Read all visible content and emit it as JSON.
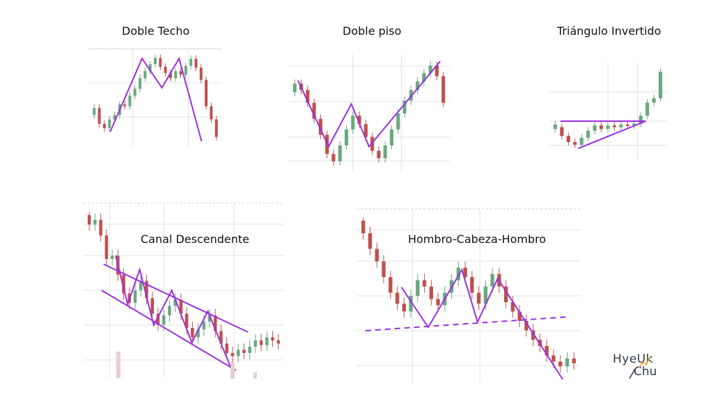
{
  "colors": {
    "up": "#6aa882",
    "down": "#c0504d",
    "pattern": "#9a2fe0",
    "grid": "#e2e2e2",
    "logo_accent": "#f0a020"
  },
  "chart_data": [
    {
      "type": "candlestick",
      "title": "Doble Techo",
      "pattern_lines": "zigzag with two peaks",
      "candles": [
        {
          "o": 0.3,
          "c": 0.38
        },
        {
          "o": 0.38,
          "c": 0.2
        },
        {
          "o": 0.2,
          "c": 0.15
        },
        {
          "o": 0.15,
          "c": 0.25
        },
        {
          "o": 0.25,
          "c": 0.3
        },
        {
          "o": 0.3,
          "c": 0.42
        },
        {
          "o": 0.42,
          "c": 0.4
        },
        {
          "o": 0.4,
          "c": 0.52
        },
        {
          "o": 0.52,
          "c": 0.6
        },
        {
          "o": 0.6,
          "c": 0.72
        },
        {
          "o": 0.72,
          "c": 0.8
        },
        {
          "o": 0.8,
          "c": 0.88
        },
        {
          "o": 0.88,
          "c": 0.95
        },
        {
          "o": 0.95,
          "c": 0.85
        },
        {
          "o": 0.85,
          "c": 0.78
        },
        {
          "o": 0.78,
          "c": 0.72
        },
        {
          "o": 0.72,
          "c": 0.8
        },
        {
          "o": 0.8,
          "c": 0.76
        },
        {
          "o": 0.76,
          "c": 0.86
        },
        {
          "o": 0.86,
          "c": 0.94
        },
        {
          "o": 0.94,
          "c": 0.84
        },
        {
          "o": 0.84,
          "c": 0.7
        },
        {
          "o": 0.7,
          "c": 0.4
        },
        {
          "o": 0.4,
          "c": 0.25
        },
        {
          "o": 0.25,
          "c": 0.05
        }
      ]
    },
    {
      "type": "candlestick",
      "title": "Doble piso",
      "pattern_lines": "zigzag with two troughs",
      "candles": [
        {
          "o": 0.7,
          "c": 0.78
        },
        {
          "o": 0.78,
          "c": 0.72
        },
        {
          "o": 0.72,
          "c": 0.6
        },
        {
          "o": 0.6,
          "c": 0.45
        },
        {
          "o": 0.45,
          "c": 0.3
        },
        {
          "o": 0.3,
          "c": 0.12
        },
        {
          "o": 0.12,
          "c": 0.05
        },
        {
          "o": 0.05,
          "c": 0.2
        },
        {
          "o": 0.2,
          "c": 0.35
        },
        {
          "o": 0.35,
          "c": 0.48
        },
        {
          "o": 0.48,
          "c": 0.4
        },
        {
          "o": 0.4,
          "c": 0.28
        },
        {
          "o": 0.28,
          "c": 0.15
        },
        {
          "o": 0.15,
          "c": 0.08
        },
        {
          "o": 0.08,
          "c": 0.2
        },
        {
          "o": 0.2,
          "c": 0.35
        },
        {
          "o": 0.35,
          "c": 0.5
        },
        {
          "o": 0.5,
          "c": 0.62
        },
        {
          "o": 0.62,
          "c": 0.72
        },
        {
          "o": 0.72,
          "c": 0.8
        },
        {
          "o": 0.8,
          "c": 0.88
        },
        {
          "o": 0.88,
          "c": 0.95
        },
        {
          "o": 0.95,
          "c": 0.85
        },
        {
          "o": 0.85,
          "c": 0.6
        }
      ]
    },
    {
      "type": "candlestick",
      "title": "Triángulo Invertido",
      "pattern_lines": "flat top and rising bottom converging",
      "candles": [
        {
          "o": 0.3,
          "c": 0.35
        },
        {
          "o": 0.32,
          "c": 0.22
        },
        {
          "o": 0.22,
          "c": 0.15
        },
        {
          "o": 0.15,
          "c": 0.12
        },
        {
          "o": 0.12,
          "c": 0.2
        },
        {
          "o": 0.2,
          "c": 0.28
        },
        {
          "o": 0.28,
          "c": 0.34
        },
        {
          "o": 0.34,
          "c": 0.3
        },
        {
          "o": 0.3,
          "c": 0.34
        },
        {
          "o": 0.34,
          "c": 0.32
        },
        {
          "o": 0.32,
          "c": 0.35
        },
        {
          "o": 0.35,
          "c": 0.34
        },
        {
          "o": 0.34,
          "c": 0.36
        },
        {
          "o": 0.36,
          "c": 0.45
        },
        {
          "o": 0.45,
          "c": 0.6
        },
        {
          "o": 0.6,
          "c": 0.65
        },
        {
          "o": 0.65,
          "c": 0.95
        }
      ]
    },
    {
      "type": "candlestick",
      "title": "Canal Descendente",
      "pattern_lines": "descending channel with zigzag",
      "candles": [
        {
          "o": 0.98,
          "c": 0.92
        },
        {
          "o": 0.92,
          "c": 0.95
        },
        {
          "o": 0.95,
          "c": 0.85
        },
        {
          "o": 0.85,
          "c": 0.7
        },
        {
          "o": 0.7,
          "c": 0.72
        },
        {
          "o": 0.72,
          "c": 0.6
        },
        {
          "o": 0.6,
          "c": 0.48
        },
        {
          "o": 0.48,
          "c": 0.42
        },
        {
          "o": 0.42,
          "c": 0.5
        },
        {
          "o": 0.5,
          "c": 0.56
        },
        {
          "o": 0.56,
          "c": 0.45
        },
        {
          "o": 0.45,
          "c": 0.35
        },
        {
          "o": 0.35,
          "c": 0.28
        },
        {
          "o": 0.28,
          "c": 0.34
        },
        {
          "o": 0.34,
          "c": 0.4
        },
        {
          "o": 0.4,
          "c": 0.44
        },
        {
          "o": 0.44,
          "c": 0.35
        },
        {
          "o": 0.35,
          "c": 0.26
        },
        {
          "o": 0.26,
          "c": 0.2
        },
        {
          "o": 0.2,
          "c": 0.25
        },
        {
          "o": 0.25,
          "c": 0.3
        },
        {
          "o": 0.3,
          "c": 0.34
        },
        {
          "o": 0.34,
          "c": 0.24
        },
        {
          "o": 0.24,
          "c": 0.16
        },
        {
          "o": 0.16,
          "c": 0.1
        },
        {
          "o": 0.1,
          "c": 0.08
        },
        {
          "o": 0.08,
          "c": 0.12
        },
        {
          "o": 0.12,
          "c": 0.1
        },
        {
          "o": 0.1,
          "c": 0.14
        },
        {
          "o": 0.14,
          "c": 0.18
        },
        {
          "o": 0.18,
          "c": 0.15
        },
        {
          "o": 0.15,
          "c": 0.2
        },
        {
          "o": 0.2,
          "c": 0.18
        },
        {
          "o": 0.18,
          "c": 0.16
        }
      ]
    },
    {
      "type": "candlestick",
      "title": "Hombro-Cabeza-Hombro",
      "pattern_lines": "head and shoulders with dashed neckline",
      "candles": [
        {
          "o": 0.98,
          "c": 0.9
        },
        {
          "o": 0.9,
          "c": 0.8
        },
        {
          "o": 0.8,
          "c": 0.72
        },
        {
          "o": 0.72,
          "c": 0.62
        },
        {
          "o": 0.62,
          "c": 0.52
        },
        {
          "o": 0.52,
          "c": 0.45
        },
        {
          "o": 0.45,
          "c": 0.4
        },
        {
          "o": 0.4,
          "c": 0.5
        },
        {
          "o": 0.5,
          "c": 0.6
        },
        {
          "o": 0.6,
          "c": 0.56
        },
        {
          "o": 0.56,
          "c": 0.48
        },
        {
          "o": 0.48,
          "c": 0.44
        },
        {
          "o": 0.44,
          "c": 0.52
        },
        {
          "o": 0.52,
          "c": 0.6
        },
        {
          "o": 0.6,
          "c": 0.68
        },
        {
          "o": 0.68,
          "c": 0.62
        },
        {
          "o": 0.62,
          "c": 0.52
        },
        {
          "o": 0.52,
          "c": 0.45
        },
        {
          "o": 0.45,
          "c": 0.56
        },
        {
          "o": 0.56,
          "c": 0.64
        },
        {
          "o": 0.64,
          "c": 0.56
        },
        {
          "o": 0.56,
          "c": 0.46
        },
        {
          "o": 0.46,
          "c": 0.4
        },
        {
          "o": 0.4,
          "c": 0.34
        },
        {
          "o": 0.34,
          "c": 0.28
        },
        {
          "o": 0.28,
          "c": 0.22
        },
        {
          "o": 0.22,
          "c": 0.18
        },
        {
          "o": 0.18,
          "c": 0.12
        },
        {
          "o": 0.12,
          "c": 0.08
        },
        {
          "o": 0.08,
          "c": 0.05
        },
        {
          "o": 0.05,
          "c": 0.1
        },
        {
          "o": 0.1,
          "c": 0.07
        }
      ]
    }
  ],
  "logo": {
    "line1": "HyeUk",
    "line2": "Chu"
  }
}
